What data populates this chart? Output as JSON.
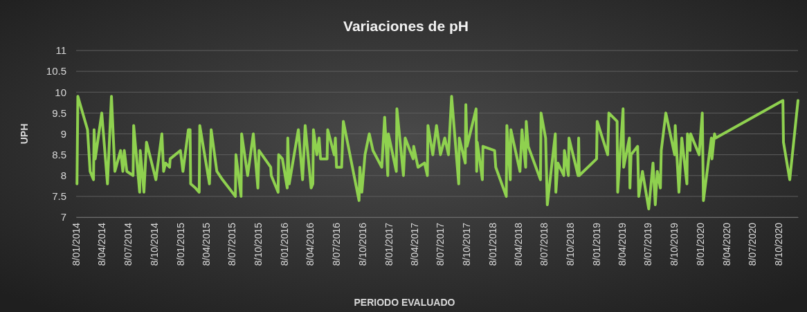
{
  "chart_data": {
    "type": "line",
    "title": "Variaciones de pH",
    "xlabel": "PERIODO EVALUADO",
    "ylabel": "UPH",
    "ylim": [
      7,
      11
    ],
    "yticks": [
      7,
      7.5,
      8,
      8.5,
      9,
      9.5,
      10,
      10.5,
      11
    ],
    "grid": "y",
    "marker": "none",
    "line_style": "solid",
    "xlim": [
      "2014-01-08",
      "2020-12-16"
    ],
    "xticks": [
      {
        "value": "2014-01-08",
        "label": "8/01/2014"
      },
      {
        "value": "2014-04-08",
        "label": "8/04/2014"
      },
      {
        "value": "2014-07-08",
        "label": "8/07/2014"
      },
      {
        "value": "2014-10-08",
        "label": "8/10/2014"
      },
      {
        "value": "2015-01-08",
        "label": "8/01/2015"
      },
      {
        "value": "2015-04-08",
        "label": "8/04/2015"
      },
      {
        "value": "2015-07-08",
        "label": "8/07/2015"
      },
      {
        "value": "2015-10-08",
        "label": "8/10/2015"
      },
      {
        "value": "2016-01-08",
        "label": "8/01/2016"
      },
      {
        "value": "2016-04-08",
        "label": "8/04/2016"
      },
      {
        "value": "2016-07-08",
        "label": "8/07/2016"
      },
      {
        "value": "2016-10-08",
        "label": "8/10/2016"
      },
      {
        "value": "2017-01-08",
        "label": "8/01/2017"
      },
      {
        "value": "2017-04-08",
        "label": "8/04/2017"
      },
      {
        "value": "2017-07-08",
        "label": "8/07/2017"
      },
      {
        "value": "2017-10-08",
        "label": "8/10/2017"
      },
      {
        "value": "2018-01-08",
        "label": "8/01/2018"
      },
      {
        "value": "2018-04-08",
        "label": "8/04/2018"
      },
      {
        "value": "2018-07-08",
        "label": "8/07/2018"
      },
      {
        "value": "2018-10-08",
        "label": "8/10/2018"
      },
      {
        "value": "2019-01-08",
        "label": "8/01/2019"
      },
      {
        "value": "2019-04-08",
        "label": "8/04/2019"
      },
      {
        "value": "2019-07-08",
        "label": "8/07/2019"
      },
      {
        "value": "2019-10-08",
        "label": "8/10/2019"
      },
      {
        "value": "2020-01-08",
        "label": "8/01/2020"
      },
      {
        "value": "2020-04-08",
        "label": "8/04/2020"
      },
      {
        "value": "2020-07-08",
        "label": "8/07/2020"
      },
      {
        "value": "2020-10-08",
        "label": "8/10/2020"
      }
    ],
    "series": [
      {
        "color": "#8fd14f",
        "x": [
          "2014-01-11",
          "2014-01-14",
          "2014-02-17",
          "2014-02-26",
          "2014-03-10",
          "2014-03-12",
          "2014-03-16",
          "2014-04-08",
          "2014-04-28",
          "2014-05-12",
          "2014-05-24",
          "2014-06-13",
          "2014-06-21",
          "2014-06-26",
          "2014-07-05",
          "2014-07-27",
          "2014-07-29",
          "2014-08-19",
          "2014-08-21",
          "2014-09-03",
          "2014-09-12",
          "2014-10-15",
          "2014-11-05",
          "2014-11-11",
          "2014-11-18",
          "2014-12-02",
          "2014-12-04",
          "2015-01-09",
          "2015-01-18",
          "2015-02-06",
          "2015-02-12",
          "2015-02-14",
          "2015-03-03",
          "2015-03-16",
          "2015-03-18",
          "2015-04-21",
          "2015-04-27",
          "2015-05-17",
          "2015-06-06",
          "2015-07-21",
          "2015-07-23",
          "2015-08-10",
          "2015-08-12",
          "2015-09-02",
          "2015-09-22",
          "2015-10-08",
          "2015-10-12",
          "2015-11-22",
          "2015-11-24",
          "2015-12-18",
          "2015-12-20",
          "2016-01-02",
          "2016-01-19",
          "2016-01-21",
          "2016-01-26",
          "2016-02-27",
          "2016-03-13",
          "2016-03-22",
          "2016-04-12",
          "2016-04-18",
          "2016-04-20",
          "2016-05-02",
          "2016-05-10",
          "2016-05-15",
          "2016-06-07",
          "2016-06-09",
          "2016-07-02",
          "2016-07-06",
          "2016-07-10",
          "2016-07-28",
          "2016-08-03",
          "2016-09-27",
          "2016-09-30",
          "2016-10-07",
          "2016-10-18",
          "2016-11-02",
          "2016-11-15",
          "2016-12-16",
          "2016-12-26",
          "2017-01-06",
          "2017-01-08",
          "2017-02-05",
          "2017-02-07",
          "2017-03-02",
          "2017-03-08",
          "2017-04-05",
          "2017-04-07",
          "2017-04-22",
          "2017-05-15",
          "2017-05-25",
          "2017-05-27",
          "2017-06-13",
          "2017-06-26",
          "2017-07-10",
          "2017-07-25",
          "2017-08-07",
          "2017-08-18",
          "2017-09-12",
          "2017-09-14",
          "2017-10-05",
          "2017-10-07",
          "2017-10-11",
          "2017-11-12",
          "2017-11-14",
          "2017-11-16",
          "2017-12-04",
          "2017-12-06",
          "2018-01-16",
          "2018-01-20",
          "2018-02-26",
          "2018-02-28",
          "2018-03-12",
          "2018-03-14",
          "2018-04-15",
          "2018-04-22",
          "2018-05-05",
          "2018-05-07",
          "2018-05-14",
          "2018-06-26",
          "2018-06-28",
          "2018-07-14",
          "2018-07-20",
          "2018-08-17",
          "2018-08-19",
          "2018-08-26",
          "2018-09-16",
          "2018-09-18",
          "2018-10-02",
          "2018-10-04",
          "2018-11-05",
          "2018-11-07",
          "2018-11-09",
          "2019-01-09",
          "2019-01-11",
          "2019-02-17",
          "2019-02-21",
          "2019-03-22",
          "2019-03-24",
          "2019-04-12",
          "2019-04-14",
          "2019-05-04",
          "2019-05-06",
          "2019-05-10",
          "2019-06-02",
          "2019-06-06",
          "2019-06-19",
          "2019-07-11",
          "2019-07-26",
          "2019-08-03",
          "2019-08-10",
          "2019-08-21",
          "2019-08-24",
          "2019-09-09",
          "2019-10-10",
          "2019-10-12",
          "2019-10-25",
          "2019-11-04",
          "2019-11-22",
          "2019-11-24",
          "2019-12-03",
          "2019-12-05",
          "2020-01-04",
          "2020-01-15",
          "2020-01-19",
          "2020-02-16",
          "2020-02-18",
          "2020-02-27",
          "2020-03-02",
          "2020-10-24",
          "2020-10-26",
          "2020-11-17",
          "2020-12-16"
        ],
        "values": [
          7.8,
          9.9,
          9.1,
          8.1,
          7.9,
          9.1,
          8.4,
          9.5,
          7.8,
          9.9,
          8.1,
          8.6,
          8.1,
          8.6,
          8.1,
          8.0,
          9.2,
          7.6,
          8.6,
          7.6,
          8.8,
          7.9,
          9.0,
          8.1,
          8.3,
          8.2,
          8.4,
          8.6,
          8.1,
          9.1,
          9.1,
          7.8,
          7.7,
          7.6,
          9.2,
          7.8,
          9.1,
          8.1,
          7.9,
          7.5,
          8.5,
          7.5,
          9.0,
          8.0,
          9.0,
          7.7,
          8.6,
          8.2,
          8.0,
          7.6,
          8.5,
          8.4,
          7.7,
          8.9,
          7.8,
          9.1,
          7.9,
          9.2,
          7.7,
          7.8,
          9.1,
          8.5,
          8.9,
          8.4,
          8.4,
          9.1,
          8.5,
          8.9,
          8.2,
          8.2,
          9.3,
          7.4,
          8.2,
          7.6,
          8.5,
          9.0,
          8.6,
          8.2,
          9.4,
          8.0,
          9.0,
          8.1,
          9.6,
          8.0,
          8.9,
          8.4,
          8.7,
          8.2,
          8.3,
          8.0,
          9.2,
          8.5,
          9.2,
          8.5,
          8.9,
          8.5,
          9.9,
          7.8,
          8.9,
          8.3,
          9.7,
          8.7,
          9.6,
          8.1,
          8.8,
          7.9,
          8.7,
          8.6,
          8.2,
          7.5,
          9.2,
          7.9,
          9.1,
          8.1,
          9.1,
          8.2,
          9.3,
          8.7,
          7.9,
          9.5,
          8.9,
          7.3,
          9.0,
          7.6,
          8.3,
          8.0,
          8.6,
          8.0,
          8.9,
          8.0,
          8.9,
          8.0,
          8.4,
          9.3,
          8.5,
          9.5,
          9.3,
          7.6,
          9.6,
          8.2,
          8.9,
          7.7,
          8.5,
          8.7,
          7.5,
          8.1,
          7.2,
          8.3,
          7.3,
          8.1,
          7.7,
          8.6,
          9.5,
          8.5,
          9.2,
          7.6,
          8.9,
          7.8,
          9.0,
          8.6,
          9.0,
          8.5,
          9.5,
          7.4,
          8.9,
          8.4,
          9.0,
          8.9,
          9.8,
          8.8,
          7.9,
          9.8
        ]
      }
    ]
  }
}
